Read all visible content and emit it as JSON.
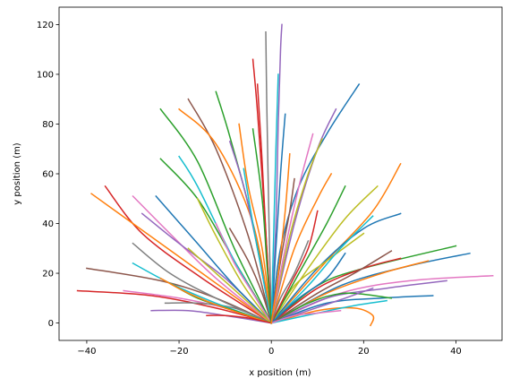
{
  "chart_data": {
    "type": "line",
    "title": "",
    "xlabel": "x position (m)",
    "ylabel": "y position (m)",
    "xlim": [
      -46,
      50
    ],
    "ylim": [
      -7,
      127
    ],
    "xticks": [
      -40,
      -20,
      0,
      20,
      40
    ],
    "yticks": [
      0,
      20,
      40,
      60,
      80,
      100,
      120
    ],
    "xtick_labels": [
      "−40",
      "−20",
      "0",
      "20",
      "40"
    ],
    "ytick_labels": [
      "0",
      "20",
      "40",
      "60",
      "80",
      "100",
      "120"
    ],
    "grid": false,
    "legend": "none",
    "colors": [
      "#1f77b4",
      "#ff7f0e",
      "#2ca02c",
      "#d62728",
      "#9467bd",
      "#8c564b",
      "#e377c2",
      "#7f7f7f",
      "#bcbd22",
      "#17becf"
    ],
    "series": [
      {
        "x": [
          0,
          2,
          6,
          12,
          19
        ],
        "y": [
          0,
          30,
          55,
          76,
          96
        ],
        "color": "#1f77b4"
      },
      {
        "x": [
          0,
          1,
          1.5,
          2,
          2.3
        ],
        "y": [
          0,
          40,
          80,
          110,
          120
        ],
        "color": "#9467bd"
      },
      {
        "x": [
          0,
          -0.5,
          -1,
          -1.2
        ],
        "y": [
          0,
          40,
          90,
          117
        ],
        "color": "#7f7f7f"
      },
      {
        "x": [
          0,
          -1.5,
          -3,
          -4
        ],
        "y": [
          0,
          45,
          85,
          106
        ],
        "color": "#d62728"
      },
      {
        "x": [
          0,
          -4,
          -9,
          -12
        ],
        "y": [
          0,
          40,
          75,
          93
        ],
        "color": "#2ca02c"
      },
      {
        "x": [
          0,
          -5,
          -12,
          -18
        ],
        "y": [
          0,
          35,
          70,
          90
        ],
        "color": "#8c564b"
      },
      {
        "x": [
          0,
          -8,
          -16,
          -24
        ],
        "y": [
          0,
          30,
          65,
          86
        ],
        "color": "#2ca02c"
      },
      {
        "x": [
          0,
          -4,
          -12,
          -20
        ],
        "y": [
          0,
          40,
          72,
          86
        ],
        "color": "#ff7f0e"
      },
      {
        "x": [
          0,
          -8,
          -16,
          -24
        ],
        "y": [
          0,
          25,
          50,
          66
        ],
        "color": "#2ca02c"
      },
      {
        "x": [
          0,
          -8,
          -16,
          -20
        ],
        "y": [
          0,
          25,
          55,
          67
        ],
        "color": "#17becf"
      },
      {
        "x": [
          0,
          5,
          10,
          14
        ],
        "y": [
          0,
          40,
          70,
          86
        ],
        "color": "#9467bd"
      },
      {
        "x": [
          0,
          4,
          8,
          11
        ],
        "y": [
          0,
          35,
          60,
          74
        ],
        "color": "#bcbd22"
      },
      {
        "x": [
          0,
          5,
          10,
          13
        ],
        "y": [
          0,
          30,
          50,
          60
        ],
        "color": "#ff7f0e"
      },
      {
        "x": [
          0,
          12,
          22,
          28
        ],
        "y": [
          0,
          25,
          45,
          64
        ],
        "color": "#ff7f0e"
      },
      {
        "x": [
          0,
          10,
          20,
          28
        ],
        "y": [
          0,
          22,
          38,
          44
        ],
        "color": "#1f77b4"
      },
      {
        "x": [
          0,
          8,
          16,
          23
        ],
        "y": [
          0,
          22,
          42,
          55
        ],
        "color": "#bcbd22"
      },
      {
        "x": [
          0,
          10,
          20,
          40
        ],
        "y": [
          0,
          15,
          22,
          31
        ],
        "color": "#2ca02c"
      },
      {
        "x": [
          0,
          15,
          30,
          43
        ],
        "y": [
          0,
          15,
          23,
          28
        ],
        "color": "#1f77b4"
      },
      {
        "x": [
          0,
          15,
          30,
          48
        ],
        "y": [
          0,
          12,
          17,
          19
        ],
        "color": "#e377c2"
      },
      {
        "x": [
          0,
          12,
          25,
          38
        ],
        "y": [
          0,
          10,
          14,
          17
        ],
        "color": "#9467bd"
      },
      {
        "x": [
          0,
          12,
          24,
          34
        ],
        "y": [
          0,
          12,
          20,
          25
        ],
        "color": "#ff7f0e"
      },
      {
        "x": [
          0,
          10,
          20,
          28
        ],
        "y": [
          0,
          14,
          22,
          26
        ],
        "color": "#d62728"
      },
      {
        "x": [
          0,
          12,
          24,
          35
        ],
        "y": [
          0,
          8,
          10,
          11
        ],
        "color": "#1f77b4"
      },
      {
        "x": [
          0,
          10,
          18,
          22,
          21.5
        ],
        "y": [
          0,
          5,
          6,
          3,
          -1
        ],
        "color": "#ff7f0e"
      },
      {
        "x": [
          0,
          8,
          16,
          26
        ],
        "y": [
          0,
          8,
          12,
          10
        ],
        "color": "#2ca02c"
      },
      {
        "x": [
          0,
          -12,
          -26,
          -42
        ],
        "y": [
          0,
          6,
          11,
          13
        ],
        "color": "#d62728"
      },
      {
        "x": [
          0,
          -12,
          -24,
          -40
        ],
        "y": [
          0,
          10,
          17,
          22
        ],
        "color": "#8c564b"
      },
      {
        "x": [
          0,
          -10,
          -20,
          -32
        ],
        "y": [
          0,
          6,
          10,
          13
        ],
        "color": "#e377c2"
      },
      {
        "x": [
          0,
          -10,
          -18,
          -26
        ],
        "y": [
          0,
          3,
          5,
          5
        ],
        "color": "#9467bd"
      },
      {
        "x": [
          0,
          -8,
          -16,
          -23
        ],
        "y": [
          0,
          6,
          8,
          8
        ],
        "color": "#7f7f7f"
      },
      {
        "x": [
          0,
          -15,
          -28,
          -36
        ],
        "y": [
          0,
          18,
          36,
          55
        ],
        "color": "#d62728"
      },
      {
        "x": [
          0,
          -15,
          -30,
          -39
        ],
        "y": [
          0,
          20,
          40,
          52
        ],
        "color": "#ff7f0e"
      },
      {
        "x": [
          0,
          -12,
          -22,
          -30
        ],
        "y": [
          0,
          18,
          36,
          51
        ],
        "color": "#e377c2"
      },
      {
        "x": [
          0,
          -10,
          -20,
          -28
        ],
        "y": [
          0,
          18,
          32,
          44
        ],
        "color": "#9467bd"
      },
      {
        "x": [
          0,
          -12,
          -22,
          -30
        ],
        "y": [
          0,
          10,
          20,
          32
        ],
        "color": "#7f7f7f"
      },
      {
        "x": [
          0,
          -12,
          -22,
          -30
        ],
        "y": [
          0,
          8,
          16,
          24
        ],
        "color": "#17becf"
      },
      {
        "x": [
          0,
          -8,
          -16,
          -25
        ],
        "y": [
          0,
          15,
          32,
          51
        ],
        "color": "#1f77b4"
      },
      {
        "x": [
          0,
          -6,
          -12,
          -16
        ],
        "y": [
          0,
          15,
          35,
          50
        ],
        "color": "#bcbd22"
      },
      {
        "x": [
          0,
          5,
          12,
          20
        ],
        "y": [
          0,
          15,
          25,
          36
        ],
        "color": "#bcbd22"
      },
      {
        "x": [
          0,
          8,
          15,
          22
        ],
        "y": [
          0,
          15,
          30,
          43
        ],
        "color": "#17becf"
      },
      {
        "x": [
          0,
          10,
          18,
          26
        ],
        "y": [
          0,
          12,
          20,
          29
        ],
        "color": "#8c564b"
      },
      {
        "x": [
          0,
          6,
          12,
          16
        ],
        "y": [
          0,
          20,
          40,
          55
        ],
        "color": "#2ca02c"
      },
      {
        "x": [
          0,
          3,
          6,
          9
        ],
        "y": [
          0,
          30,
          55,
          76
        ],
        "color": "#e377c2"
      },
      {
        "x": [
          0,
          -3,
          -6,
          -9
        ],
        "y": [
          0,
          30,
          55,
          73
        ],
        "color": "#9467bd"
      },
      {
        "x": [
          0,
          -2,
          -5,
          -7
        ],
        "y": [
          0,
          30,
          55,
          80
        ],
        "color": "#ff7f0e"
      },
      {
        "x": [
          0,
          1,
          2,
          3
        ],
        "y": [
          0,
          30,
          60,
          84
        ],
        "color": "#1f77b4"
      },
      {
        "x": [
          0,
          -1,
          -2,
          -3
        ],
        "y": [
          0,
          30,
          65,
          96
        ],
        "color": "#d62728"
      },
      {
        "x": [
          0,
          0.5,
          1,
          1.5
        ],
        "y": [
          0,
          35,
          70,
          100
        ],
        "color": "#17becf"
      },
      {
        "x": [
          0,
          2,
          4,
          5
        ],
        "y": [
          0,
          25,
          45,
          58
        ],
        "color": "#8c564b"
      },
      {
        "x": [
          0,
          -2,
          -4,
          -6
        ],
        "y": [
          0,
          20,
          40,
          62
        ],
        "color": "#17becf"
      },
      {
        "x": [
          0,
          4,
          8,
          10
        ],
        "y": [
          0,
          15,
          30,
          45
        ],
        "color": "#d62728"
      },
      {
        "x": [
          0,
          -4,
          -8,
          -12
        ],
        "y": [
          0,
          12,
          24,
          40
        ],
        "color": "#e377c2"
      },
      {
        "x": [
          0,
          6,
          12,
          16
        ],
        "y": [
          0,
          10,
          18,
          28
        ],
        "color": "#1f77b4"
      },
      {
        "x": [
          0,
          -6,
          -12,
          -18
        ],
        "y": [
          0,
          10,
          20,
          30
        ],
        "color": "#bcbd22"
      },
      {
        "x": [
          0,
          8,
          16,
          22
        ],
        "y": [
          0,
          5,
          10,
          14
        ],
        "color": "#9467bd"
      },
      {
        "x": [
          0,
          -8,
          -16,
          -22
        ],
        "y": [
          0,
          5,
          10,
          16
        ],
        "color": "#2ca02c"
      },
      {
        "x": [
          0,
          10,
          18,
          25
        ],
        "y": [
          0,
          4,
          7,
          9
        ],
        "color": "#17becf"
      },
      {
        "x": [
          0,
          -10,
          -18,
          -24
        ],
        "y": [
          0,
          6,
          12,
          18
        ],
        "color": "#ff7f0e"
      },
      {
        "x": [
          0,
          5,
          10,
          15
        ],
        "y": [
          0,
          3,
          4,
          5
        ],
        "color": "#e377c2"
      },
      {
        "x": [
          0,
          -5,
          -10,
          -14
        ],
        "y": [
          0,
          2,
          3,
          3
        ],
        "color": "#d62728"
      },
      {
        "x": [
          0,
          2,
          5,
          8
        ],
        "y": [
          0,
          10,
          20,
          33
        ],
        "color": "#7f7f7f"
      },
      {
        "x": [
          0,
          -2,
          -5,
          -9
        ],
        "y": [
          0,
          12,
          25,
          38
        ],
        "color": "#8c564b"
      },
      {
        "x": [
          0,
          -1,
          -2,
          -4
        ],
        "y": [
          0,
          25,
          50,
          78
        ],
        "color": "#2ca02c"
      },
      {
        "x": [
          0,
          1.5,
          3,
          4
        ],
        "y": [
          0,
          20,
          45,
          68
        ],
        "color": "#ff7f0e"
      }
    ]
  }
}
